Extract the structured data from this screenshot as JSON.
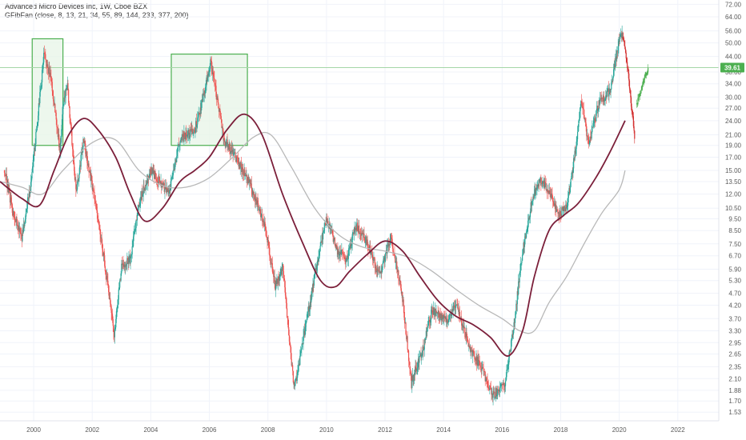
{
  "header": {
    "symbol_line": "Advanced Micro Devices Inc, 1W, Cboe BZX",
    "indicator_line": "GFibFan (close, 8, 13, 21, 34, 55, 89, 144, 233, 377, 200)"
  },
  "colors": {
    "up": "#26a69a",
    "up_light": "#81c784",
    "down": "#ef5350",
    "down_light": "#f48fb1",
    "recent_up": "#4caf50",
    "recent_down": "#d32f2f",
    "ma_fast": "#7b1f3a",
    "ma_slow": "#b8b8b8",
    "box_fill": "#e8f5e9",
    "box_stroke": "#4caf50",
    "hline": "#a5d6a7",
    "badge": "#4caf50",
    "grid": "#f0f3fa"
  },
  "chart_data": {
    "type": "candlestick",
    "title": "Advanced Micro Devices Inc, 1W, Cboe BZX",
    "x_axis": {
      "range": [
        1998.85,
        2023.4
      ],
      "ticks": [
        "2000",
        "2002",
        "2004",
        "2006",
        "2008",
        "2010",
        "2012",
        "2014",
        "2016",
        "2018",
        "2020",
        "2022"
      ]
    },
    "y_axis": {
      "scale": "log",
      "range": [
        1.41,
        75
      ],
      "ticks": [
        "72.00",
        "64.00",
        "56.00",
        "50.00",
        "44.00",
        "38.00",
        "34.00",
        "30.00",
        "27.00",
        "24.00",
        "21.00",
        "19.00",
        "17.00",
        "15.00",
        "13.50",
        "12.00",
        "10.50",
        "9.50",
        "8.50",
        "7.50",
        "6.70",
        "5.90",
        "5.30",
        "4.70",
        "4.20",
        "3.70",
        "3.30",
        "2.95",
        "2.65",
        "2.35",
        "2.10",
        "1.88",
        "1.70",
        "1.53"
      ]
    },
    "price_path": [
      [
        1999.0,
        15.0
      ],
      [
        1999.3,
        10.0
      ],
      [
        1999.6,
        8.0
      ],
      [
        1999.9,
        13.0
      ],
      [
        2000.1,
        22.0
      ],
      [
        2000.35,
        45.0
      ],
      [
        2000.6,
        35.0
      ],
      [
        2000.9,
        18.0
      ],
      [
        2001.0,
        28.0
      ],
      [
        2001.15,
        34.0
      ],
      [
        2001.45,
        12.0
      ],
      [
        2001.7,
        20.0
      ],
      [
        2001.95,
        14.0
      ],
      [
        2002.3,
        8.0
      ],
      [
        2002.75,
        3.2
      ],
      [
        2003.0,
        6.0
      ],
      [
        2003.3,
        6.5
      ],
      [
        2003.6,
        11.0
      ],
      [
        2004.0,
        15.0
      ],
      [
        2004.4,
        13.0
      ],
      [
        2004.6,
        12.0
      ],
      [
        2005.0,
        20.0
      ],
      [
        2005.5,
        22.0
      ],
      [
        2005.8,
        30.0
      ],
      [
        2006.05,
        42.0
      ],
      [
        2006.5,
        20.0
      ],
      [
        2006.9,
        17.0
      ],
      [
        2007.4,
        13.0
      ],
      [
        2007.9,
        9.0
      ],
      [
        2008.25,
        5.0
      ],
      [
        2008.5,
        6.0
      ],
      [
        2008.9,
        1.9
      ],
      [
        2009.3,
        3.5
      ],
      [
        2009.8,
        7.5
      ],
      [
        2010.0,
        9.5
      ],
      [
        2010.4,
        7.0
      ],
      [
        2010.7,
        6.5
      ],
      [
        2011.0,
        9.0
      ],
      [
        2011.4,
        7.5
      ],
      [
        2011.8,
        5.5
      ],
      [
        2012.2,
        8.0
      ],
      [
        2012.6,
        4.5
      ],
      [
        2012.9,
        2.0
      ],
      [
        2013.3,
        2.8
      ],
      [
        2013.6,
        4.0
      ],
      [
        2014.1,
        3.6
      ],
      [
        2014.4,
        4.3
      ],
      [
        2014.9,
        2.8
      ],
      [
        2015.3,
        2.3
      ],
      [
        2015.7,
        1.8
      ],
      [
        2016.1,
        2.0
      ],
      [
        2016.4,
        3.5
      ],
      [
        2016.7,
        7.0
      ],
      [
        2017.0,
        11.0
      ],
      [
        2017.3,
        14.0
      ],
      [
        2017.6,
        12.5
      ],
      [
        2017.9,
        10.0
      ],
      [
        2018.2,
        10.5
      ],
      [
        2018.5,
        18.0
      ],
      [
        2018.7,
        30.0
      ],
      [
        2018.95,
        19.0
      ],
      [
        2019.3,
        28.0
      ],
      [
        2019.7,
        32.0
      ],
      [
        2019.95,
        48.0
      ],
      [
        2020.1,
        56.0
      ]
    ],
    "recent_down_path": [
      [
        2020.12,
        52.0
      ],
      [
        2020.2,
        46.0
      ],
      [
        2020.28,
        40.0
      ],
      [
        2020.35,
        33.0
      ],
      [
        2020.42,
        27.0
      ],
      [
        2020.48,
        24.0
      ],
      [
        2020.54,
        19.0
      ]
    ],
    "recent_up_path": [
      [
        2020.6,
        28.0
      ],
      [
        2020.7,
        31.0
      ],
      [
        2020.8,
        34.0
      ],
      [
        2020.9,
        37.0
      ],
      [
        2021.0,
        39.6
      ]
    ],
    "series": [
      {
        "line": [
          [
            1998.85,
            13.5
          ],
          [
            1999.6,
            11.5
          ],
          [
            2000.2,
            10.8
          ],
          [
            2000.7,
            15.0
          ],
          [
            2001.2,
            21.0
          ],
          [
            2001.7,
            24.5
          ],
          [
            2002.2,
            22.0
          ],
          [
            2002.8,
            17.0
          ],
          [
            2003.3,
            12.0
          ],
          [
            2003.8,
            9.3
          ],
          [
            2004.4,
            10.5
          ],
          [
            2005.0,
            13.5
          ],
          [
            2005.5,
            15.0
          ],
          [
            2006.0,
            17.0
          ],
          [
            2006.6,
            22.0
          ],
          [
            2007.2,
            25.5
          ],
          [
            2007.8,
            21.0
          ],
          [
            2008.5,
            12.0
          ],
          [
            2009.2,
            7.5
          ],
          [
            2009.8,
            5.3
          ],
          [
            2010.3,
            5.0
          ],
          [
            2010.8,
            5.8
          ],
          [
            2011.4,
            6.8
          ],
          [
            2012.0,
            7.7
          ],
          [
            2012.6,
            7.0
          ],
          [
            2013.2,
            5.5
          ],
          [
            2013.8,
            4.4
          ],
          [
            2014.4,
            3.8
          ],
          [
            2015.0,
            3.5
          ],
          [
            2015.6,
            3.1
          ],
          [
            2016.2,
            2.6
          ],
          [
            2016.7,
            3.3
          ],
          [
            2017.1,
            5.5
          ],
          [
            2017.6,
            8.5
          ],
          [
            2018.1,
            9.8
          ],
          [
            2018.6,
            11.0
          ],
          [
            2019.2,
            14.0
          ],
          [
            2019.7,
            18.0
          ],
          [
            2020.2,
            24.0
          ]
        ]
      },
      {
        "line": [
          [
            1998.85,
            13.5
          ],
          [
            1999.6,
            12.8
          ],
          [
            2000.3,
            12.0
          ],
          [
            2001.0,
            15.0
          ],
          [
            2002.0,
            19.5
          ],
          [
            2002.8,
            20.0
          ],
          [
            2003.6,
            15.0
          ],
          [
            2004.4,
            13.0
          ],
          [
            2005.2,
            12.8
          ],
          [
            2006.0,
            14.0
          ],
          [
            2006.8,
            17.0
          ],
          [
            2007.5,
            20.5
          ],
          [
            2008.1,
            21.0
          ],
          [
            2008.8,
            15.5
          ],
          [
            2009.6,
            10.5
          ],
          [
            2010.4,
            8.2
          ],
          [
            2011.2,
            7.3
          ],
          [
            2012.0,
            7.0
          ],
          [
            2012.8,
            6.6
          ],
          [
            2013.6,
            5.8
          ],
          [
            2014.4,
            4.9
          ],
          [
            2015.2,
            4.2
          ],
          [
            2016.0,
            3.7
          ],
          [
            2016.6,
            3.3
          ],
          [
            2017.1,
            3.3
          ],
          [
            2017.6,
            4.3
          ],
          [
            2018.2,
            5.5
          ],
          [
            2018.8,
            7.5
          ],
          [
            2019.4,
            10.0
          ],
          [
            2020.0,
            12.5
          ],
          [
            2020.2,
            15.0
          ]
        ]
      }
    ],
    "boxes": [
      {
        "x0": 1999.95,
        "x1": 2001.0,
        "y0": 19.0,
        "y1": 52.0
      },
      {
        "x0": 2004.7,
        "x1": 2007.3,
        "y0": 19.0,
        "y1": 45.0
      }
    ],
    "last_price": {
      "value": 39.61,
      "label": "39.61"
    },
    "grid": true
  }
}
